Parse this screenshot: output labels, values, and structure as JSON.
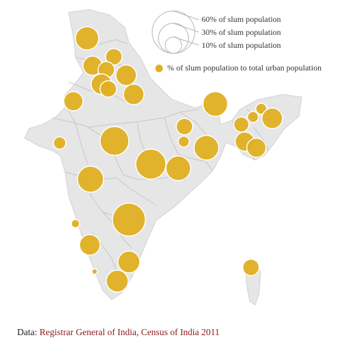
{
  "legend": {
    "size_labels": [
      "60% of slum population",
      "30% of slum population",
      "10% of slum population"
    ],
    "size_values": [
      60,
      30,
      10
    ],
    "color_label": "% of slum population to total urban population"
  },
  "colors": {
    "bubble_fill": "#e0af22",
    "bubble_stroke": "#ffffff",
    "land_fill": "#e6e6e6",
    "border": "#c6c6c6",
    "source_link": "#8b1a1a"
  },
  "source": {
    "prefix": "Data: ",
    "text": "Registrar General of India, Census of India 2011"
  }
}
